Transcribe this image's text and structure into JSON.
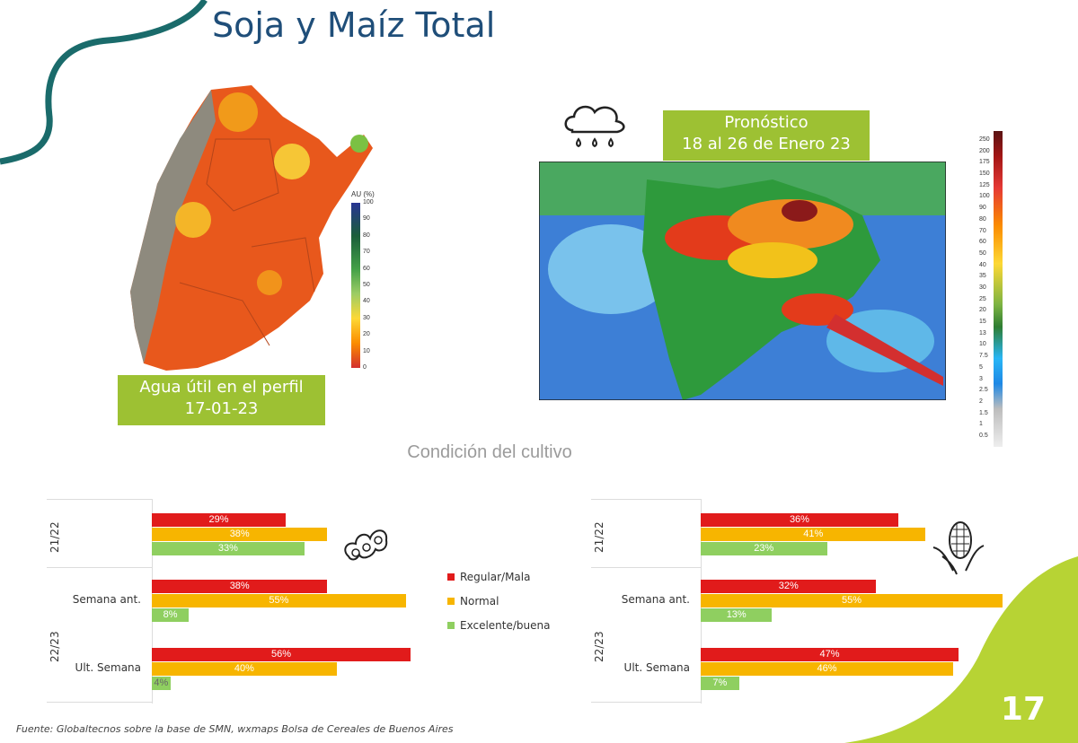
{
  "slide": {
    "title": "Soja y Maíz Total",
    "page_number": "17",
    "footer": "Fuente: Globaltecnos sobre la base de SMN, wxmaps Bolsa de Cereales de Buenos Aires",
    "condition_title": "Condición del cultivo",
    "colors": {
      "title": "#1f4e79",
      "box_green": "#9dc133",
      "red": "#e11b1b",
      "orange": "#f7b500",
      "light_green": "#8fcf60"
    }
  },
  "soil_map": {
    "caption_line1": "Agua útil en el perfil",
    "caption_line2": "17-01-23",
    "scale_title": "AU (%)",
    "scale_ticks": [
      "100",
      "90",
      "80",
      "70",
      "60",
      "50",
      "40",
      "30",
      "20",
      "10",
      "0"
    ]
  },
  "forecast_map": {
    "caption_line1": "Pronóstico",
    "caption_line2": "18 al 26 de Enero 23",
    "icon": "rain-cloud-icon",
    "scale_ticks": [
      "250",
      "200",
      "175",
      "150",
      "125",
      "100",
      "90",
      "80",
      "70",
      "60",
      "50",
      "40",
      "35",
      "30",
      "25",
      "20",
      "15",
      "13",
      "10",
      "7.5",
      "5",
      "3",
      "2.5",
      "2",
      "1.5",
      "1",
      "0.5"
    ]
  },
  "legend": [
    {
      "label": "Regular/Mala",
      "color": "#e11b1b"
    },
    {
      "label": "Normal",
      "color": "#f7b500"
    },
    {
      "label": "Excelente/buena",
      "color": "#8fcf60"
    }
  ],
  "chart_data": [
    {
      "type": "bar",
      "crop_icon": "soybean-icon",
      "groups": [
        {
          "season": "21/22",
          "row": "",
          "values": [
            29,
            38,
            33
          ],
          "labels": [
            "29%",
            "38%",
            "33%"
          ]
        },
        {
          "season": "22/23",
          "row": "Semana ant.",
          "values": [
            38,
            55,
            8
          ],
          "labels": [
            "38%",
            "55%",
            "8%"
          ]
        },
        {
          "season": "22/23",
          "row": "Ult. Semana",
          "values": [
            56,
            40,
            4
          ],
          "labels": [
            "56%",
            "40%",
            "4%"
          ]
        }
      ],
      "series": [
        "Regular/Mala",
        "Normal",
        "Excelente/buena"
      ],
      "scale_max": 56
    },
    {
      "type": "bar",
      "crop_icon": "corn-icon",
      "groups": [
        {
          "season": "21/22",
          "row": "",
          "values": [
            36,
            41,
            23
          ],
          "labels": [
            "36%",
            "41%",
            "23%"
          ]
        },
        {
          "season": "22/23",
          "row": "Semana ant.",
          "values": [
            32,
            55,
            13
          ],
          "labels": [
            "32%",
            "55%",
            "13%"
          ]
        },
        {
          "season": "22/23",
          "row": "Ult. Semana",
          "values": [
            47,
            46,
            7
          ],
          "labels": [
            "47%",
            "46%",
            "7%"
          ]
        }
      ],
      "series": [
        "Regular/Mala",
        "Normal",
        "Excelente/buena"
      ],
      "scale_max": 55
    }
  ]
}
